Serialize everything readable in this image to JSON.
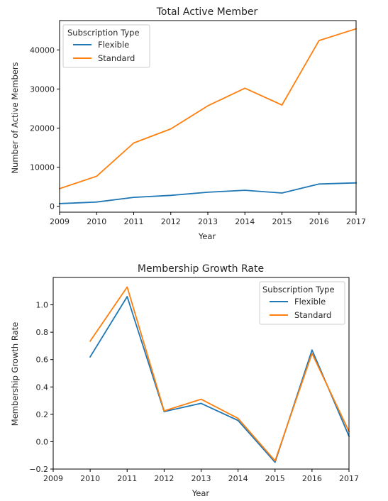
{
  "colors": {
    "flexible": "#1f77b4",
    "standard": "#ff7f0e"
  },
  "chart_data": [
    {
      "type": "line",
      "title": "Total Active Member",
      "xlabel": "Year",
      "ylabel": "Number of Active Members",
      "xlim": [
        2009,
        2017
      ],
      "ylim": [
        -1500,
        47500
      ],
      "xticks": [
        "2009",
        "2010",
        "2011",
        "2012",
        "2013",
        "2014",
        "2015",
        "2016",
        "2017"
      ],
      "yticks": [
        "0",
        "10000",
        "20000",
        "30000",
        "40000"
      ],
      "legend": {
        "title": "Subscription Type",
        "placement": "top-left"
      },
      "grid": false,
      "series": [
        {
          "name": "Flexible",
          "color": "#1f77b4",
          "x": [
            2009,
            2010,
            2011,
            2012,
            2013,
            2014,
            2015,
            2016,
            2017
          ],
          "y": [
            700,
            1100,
            2300,
            2800,
            3600,
            4100,
            3400,
            5700,
            6000
          ]
        },
        {
          "name": "Standard",
          "color": "#ff7f0e",
          "x": [
            2009,
            2010,
            2011,
            2012,
            2013,
            2014,
            2015,
            2016,
            2017
          ],
          "y": [
            4500,
            7700,
            16200,
            19800,
            25700,
            30200,
            25900,
            42400,
            45400
          ]
        }
      ]
    },
    {
      "type": "line",
      "title": "Membership Growth Rate",
      "xlabel": "Year",
      "ylabel": "Membership Growth Rate",
      "xlim": [
        2009,
        2017
      ],
      "ylim": [
        -0.2,
        1.2
      ],
      "xticks": [
        "2009",
        "2010",
        "2011",
        "2012",
        "2013",
        "2014",
        "2015",
        "2016",
        "2017"
      ],
      "yticks": [
        "−0.2",
        "0.0",
        "0.2",
        "0.4",
        "0.6",
        "0.8",
        "1.0"
      ],
      "legend": {
        "title": "Subscription Type",
        "placement": "top-right"
      },
      "grid": false,
      "series": [
        {
          "name": "Flexible",
          "color": "#1f77b4",
          "x": [
            2010,
            2011,
            2012,
            2013,
            2014,
            2015,
            2016,
            2017
          ],
          "y": [
            0.62,
            1.06,
            0.22,
            0.28,
            0.155,
            -0.15,
            0.67,
            0.04
          ]
        },
        {
          "name": "Standard",
          "color": "#ff7f0e",
          "x": [
            2010,
            2011,
            2012,
            2013,
            2014,
            2015,
            2016,
            2017
          ],
          "y": [
            0.735,
            1.13,
            0.225,
            0.31,
            0.17,
            -0.14,
            0.645,
            0.075
          ]
        }
      ]
    }
  ]
}
